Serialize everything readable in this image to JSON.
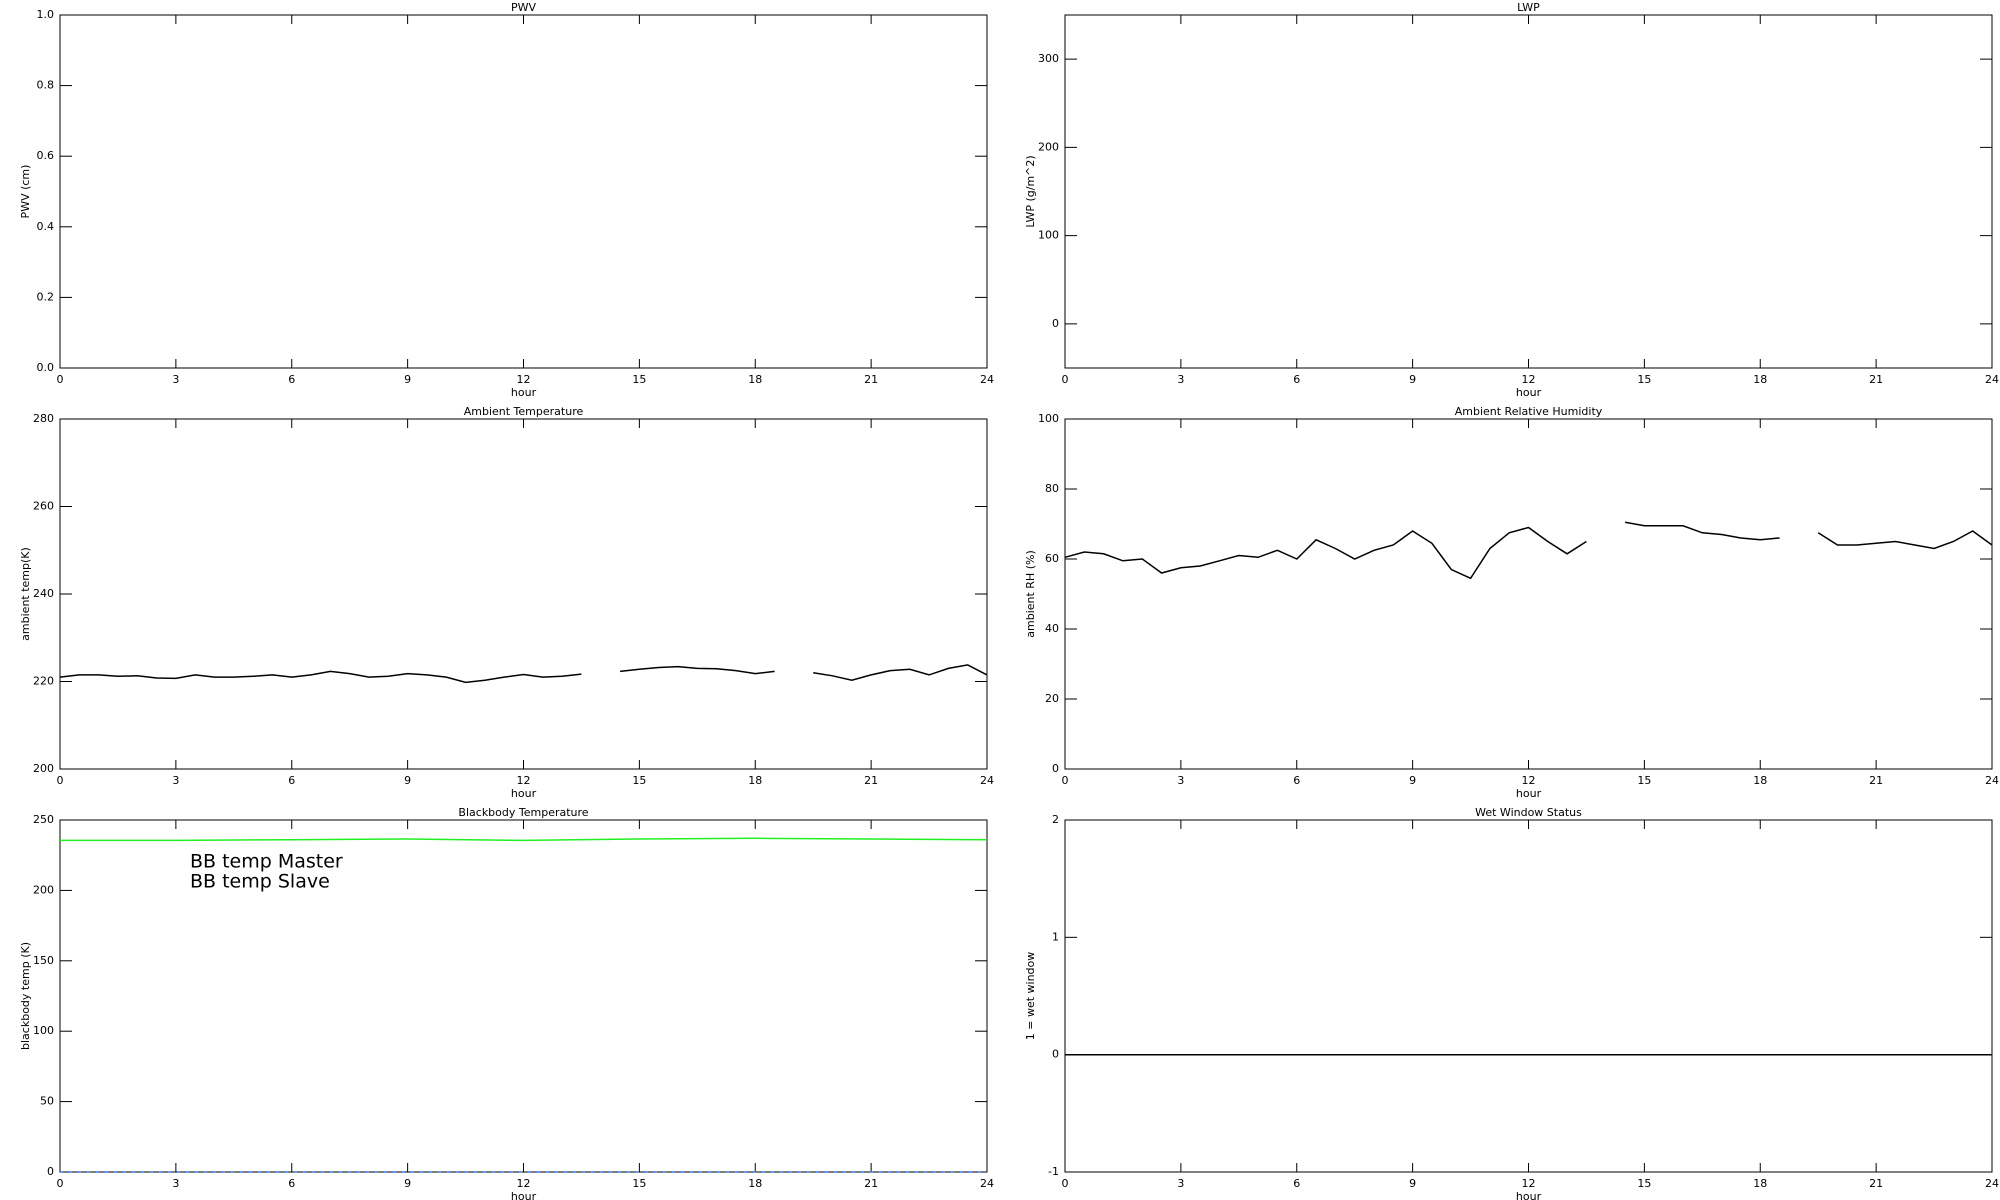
{
  "chart_data": [
    {
      "type": "line",
      "title": "PWV",
      "xlabel": "hour",
      "ylabel": "PWV (cm)",
      "xlim": [
        0,
        24
      ],
      "xticks": [
        0,
        3,
        6,
        9,
        12,
        15,
        18,
        21,
        24
      ],
      "ylim": [
        0,
        1
      ],
      "yticks": [
        {
          "value": 0,
          "label": "0.0"
        },
        0.2,
        0.4,
        0.6,
        0.8,
        {
          "value": 1,
          "label": "1.0"
        }
      ]
    },
    {
      "type": "line",
      "title": "LWP",
      "xlabel": "hour",
      "ylabel": "LWP (g/m^2)",
      "xlim": [
        0,
        24
      ],
      "xticks": [
        0,
        3,
        6,
        9,
        12,
        15,
        18,
        21,
        24
      ],
      "ylim": [
        -50,
        350
      ],
      "yticks": [
        0,
        100,
        200,
        300
      ]
    },
    {
      "type": "line",
      "title": "Ambient Temperature",
      "xlabel": "hour",
      "ylabel": "ambient temp(K)",
      "xlim": [
        0,
        24
      ],
      "xticks": [
        0,
        3,
        6,
        9,
        12,
        15,
        18,
        21,
        24
      ],
      "ylim": [
        200,
        280
      ],
      "yticks": [
        200,
        220,
        240,
        260,
        280
      ],
      "x": [
        0,
        0.5,
        1,
        1.5,
        2,
        2.5,
        3,
        3.5,
        4,
        4.5,
        5,
        5.5,
        6,
        6.5,
        7,
        7.5,
        8,
        8.5,
        9,
        9.5,
        10,
        10.5,
        11,
        11.5,
        12,
        12.5,
        13,
        13.5,
        14,
        14.5,
        15,
        15.5,
        16,
        16.5,
        17,
        17.5,
        18,
        18.5,
        19,
        19.5,
        20,
        20.5,
        21,
        21.5,
        22,
        22.5,
        23,
        23.5,
        24
      ],
      "series": [
        {
          "color": "#000000",
          "values": [
            221,
            221.5,
            221.5,
            221.2,
            221.3,
            220.8,
            220.7,
            221.5,
            221,
            221,
            221.2,
            221.5,
            221,
            221.5,
            222.3,
            221.8,
            221,
            221.2,
            221.8,
            221.5,
            221,
            219.8,
            220.3,
            221,
            221.6,
            221,
            221.2,
            221.7,
            null,
            222.3,
            222.8,
            223.2,
            223.4,
            223,
            222.9,
            222.5,
            221.8,
            222.3,
            null,
            222,
            221.3,
            220.3,
            221.5,
            222.5,
            222.8,
            221.5,
            223,
            223.8,
            221.5
          ]
        }
      ]
    },
    {
      "type": "line",
      "title": "Ambient Relative Humidity",
      "xlabel": "hour",
      "ylabel": "ambient RH (%)",
      "xlim": [
        0,
        24
      ],
      "xticks": [
        0,
        3,
        6,
        9,
        12,
        15,
        18,
        21,
        24
      ],
      "ylim": [
        0,
        100
      ],
      "yticks": [
        0,
        20,
        40,
        60,
        80,
        100
      ],
      "x": [
        0,
        0.5,
        1,
        1.5,
        2,
        2.5,
        3,
        3.5,
        4,
        4.5,
        5,
        5.5,
        6,
        6.5,
        7,
        7.5,
        8,
        8.5,
        9,
        9.5,
        10,
        10.5,
        11,
        11.5,
        12,
        12.5,
        13,
        13.5,
        14,
        14.5,
        15,
        15.5,
        16,
        16.5,
        17,
        17.5,
        18,
        18.5,
        19,
        19.5,
        20,
        20.5,
        21,
        21.5,
        22,
        22.5,
        23,
        23.5,
        24
      ],
      "series": [
        {
          "color": "#000000",
          "values": [
            60.5,
            62,
            61.5,
            59.5,
            60,
            56,
            57.5,
            58,
            59.5,
            61,
            60.5,
            62.5,
            60,
            65.5,
            63,
            60,
            62.5,
            64,
            68,
            64.5,
            57,
            54.5,
            63,
            67.5,
            69,
            65,
            61.5,
            65,
            null,
            70.5,
            69.5,
            69.5,
            69.5,
            67.5,
            67,
            66,
            65.5,
            66,
            null,
            67.5,
            64,
            64,
            64.5,
            65,
            64,
            63,
            65,
            68,
            64
          ]
        }
      ]
    },
    {
      "type": "line",
      "title": "Blackbody Temperature",
      "xlabel": "hour",
      "ylabel": "blackbody temp (K)",
      "xlim": [
        0,
        24
      ],
      "xticks": [
        0,
        3,
        6,
        9,
        12,
        15,
        18,
        21,
        24
      ],
      "ylim": [
        0,
        250
      ],
      "yticks": [
        0,
        50,
        100,
        150,
        200,
        250
      ],
      "legend": "upper left",
      "x": [
        0,
        3,
        6,
        9,
        12,
        15,
        18,
        21,
        24
      ],
      "series": [
        {
          "name": "BB temp Master",
          "color": "#2f7fff",
          "dashed": true,
          "values": [
            0,
            0,
            0,
            0,
            0,
            0,
            0,
            0,
            0
          ]
        },
        {
          "name": "BB temp Slave",
          "color": "#22ee22",
          "values": [
            235.5,
            235.5,
            236,
            236.5,
            235.5,
            236.5,
            237,
            236.5,
            236
          ]
        }
      ]
    },
    {
      "type": "line",
      "title": "Wet Window Status",
      "xlabel": "hour",
      "ylabel": "1 = wet window",
      "xlim": [
        0,
        24
      ],
      "xticks": [
        0,
        3,
        6,
        9,
        12,
        15,
        18,
        21,
        24
      ],
      "ylim": [
        -1,
        2
      ],
      "yticks": [
        -1,
        0,
        1,
        2
      ],
      "x": [
        0,
        24
      ],
      "series": [
        {
          "color": "#000000",
          "values": [
            0,
            0
          ]
        }
      ]
    }
  ]
}
